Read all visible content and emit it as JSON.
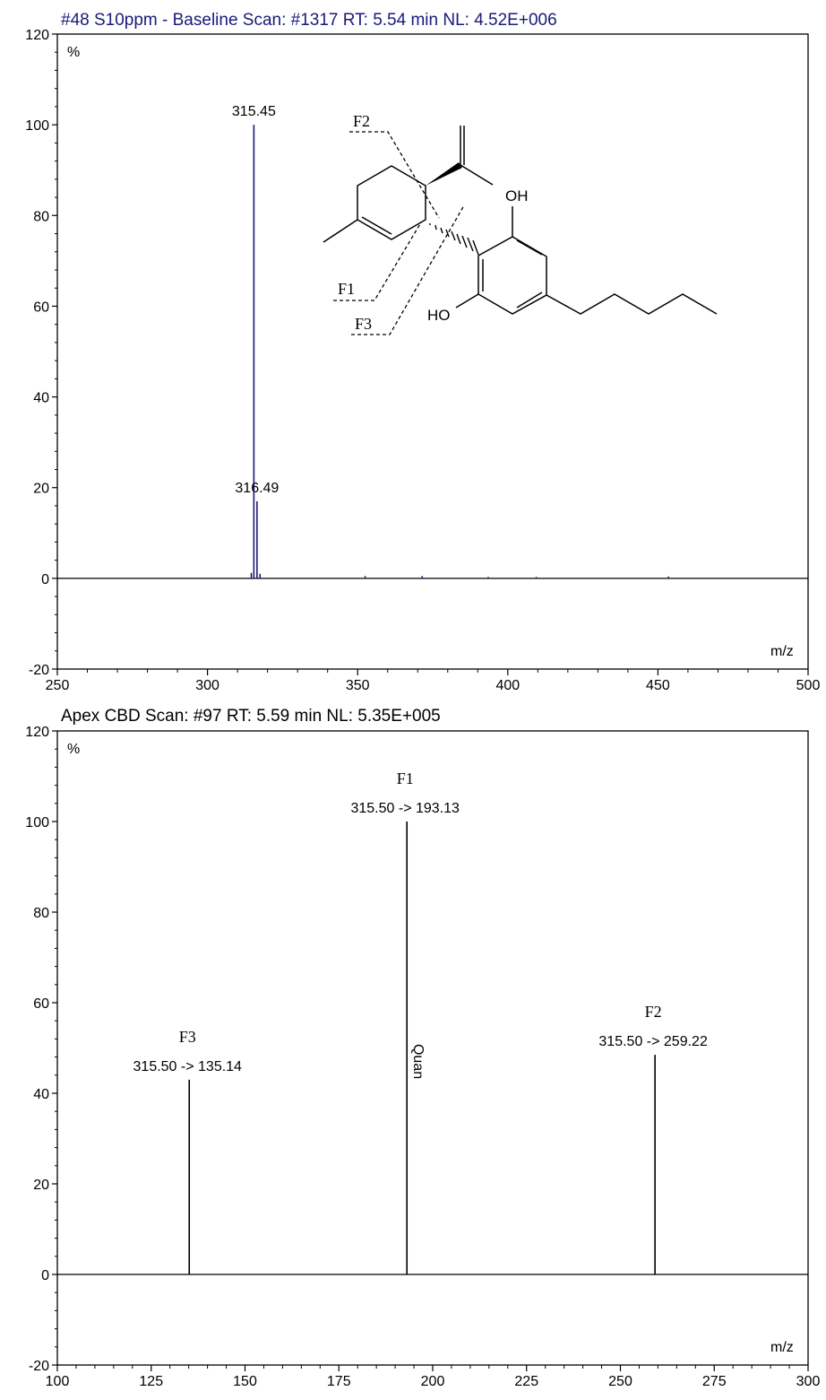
{
  "chart_data": [
    {
      "type": "bar",
      "title": "#48 S10ppm - Baseline Scan: #1317  RT: 5.54 min NL: 4.52E+006",
      "xlabel": "m/z",
      "ylabel": "%",
      "xlim": [
        250,
        500
      ],
      "ylim": [
        -20,
        120
      ],
      "xticks": [
        250,
        300,
        350,
        400,
        450,
        500
      ],
      "yticks": [
        -20,
        0,
        20,
        40,
        60,
        80,
        100,
        120
      ],
      "grid": false,
      "line_color": "#1a1a7a",
      "peaks": [
        {
          "x": 314.6,
          "y": 1.2
        },
        {
          "x": 315.45,
          "y": 100,
          "label": "315.45"
        },
        {
          "x": 316.49,
          "y": 17,
          "label": "316.49"
        },
        {
          "x": 317.5,
          "y": 1
        },
        {
          "x": 352.5,
          "y": 0.5
        },
        {
          "x": 371.5,
          "y": 0.5
        },
        {
          "x": 393.5,
          "y": 0.3
        },
        {
          "x": 409.5,
          "y": 0.3
        },
        {
          "x": 453.5,
          "y": 0.4
        }
      ],
      "structure": {
        "labels": {
          "oh_top": "OH",
          "oh_bottom": "HO",
          "f1": "F1",
          "f2": "F2",
          "f3": "F3"
        }
      }
    },
    {
      "type": "bar",
      "title": "Apex CBD Scan: #97  RT: 5.59 min NL: 5.35E+005",
      "xlabel": "m/z",
      "ylabel": "%",
      "xlim": [
        100,
        300
      ],
      "ylim": [
        -20,
        120
      ],
      "xticks": [
        100,
        125,
        150,
        175,
        200,
        225,
        250,
        275,
        300
      ],
      "yticks": [
        -20,
        0,
        20,
        40,
        60,
        80,
        100,
        120
      ],
      "grid": false,
      "line_color": "#000000",
      "peaks": [
        {
          "x": 135.14,
          "y": 43,
          "label": "315.50 -> 135.14",
          "fragment": "F3"
        },
        {
          "x": 193.13,
          "y": 100,
          "label": "315.50 -> 193.13",
          "fragment": "F1",
          "tag": "Quan"
        },
        {
          "x": 259.22,
          "y": 48.5,
          "label": "315.50 -> 259.22",
          "fragment": "F2"
        }
      ]
    }
  ]
}
